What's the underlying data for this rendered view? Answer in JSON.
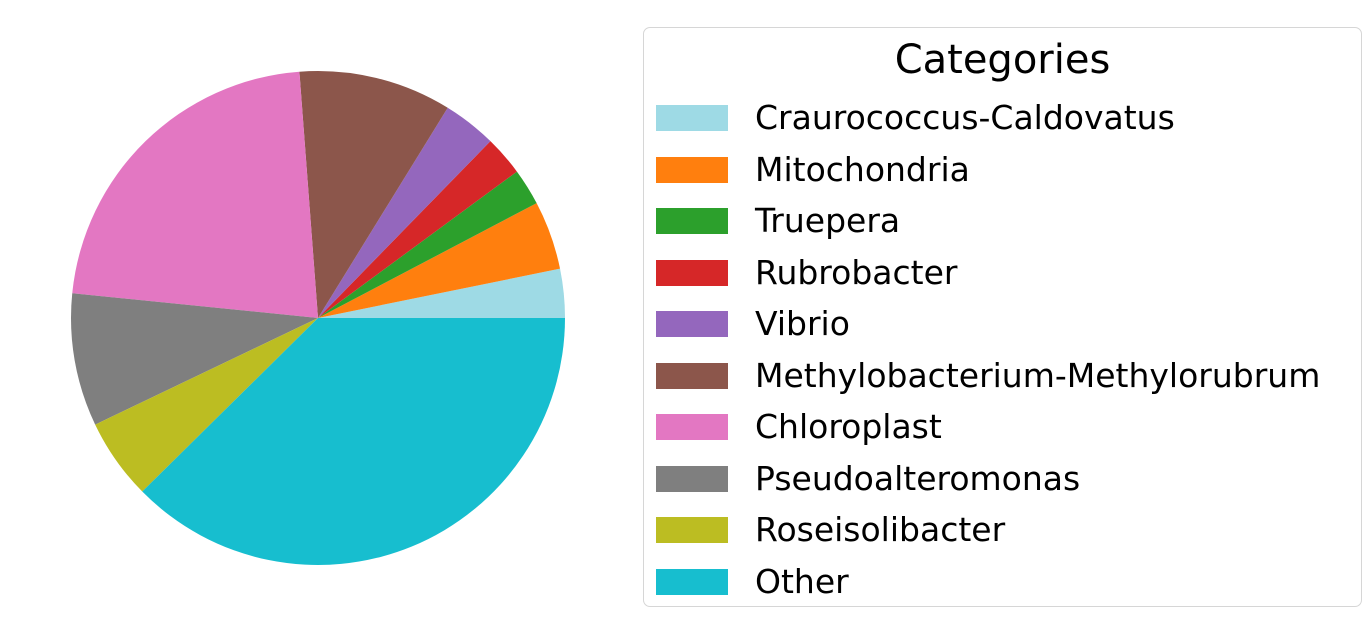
{
  "chart_data": {
    "type": "pie",
    "legend_title": "Categories",
    "legend_position": "right",
    "start_angle_deg": 0,
    "direction": "counterclockwise",
    "slices": [
      {
        "label": "Craurococcus-Caldovatus",
        "value": 3.2,
        "color": "#9edae5"
      },
      {
        "label": "Mitochondria",
        "value": 4.5,
        "color": "#ff7f0e"
      },
      {
        "label": "Truepera",
        "value": 2.4,
        "color": "#2ca02c"
      },
      {
        "label": "Rubrobacter",
        "value": 2.6,
        "color": "#d62728"
      },
      {
        "label": "Vibrio",
        "value": 3.5,
        "color": "#9467bd"
      },
      {
        "label": "Methylobacterium-Methylorubrum",
        "value": 10.0,
        "color": "#8c564b"
      },
      {
        "label": "Chloroplast",
        "value": 22.2,
        "color": "#e377c2"
      },
      {
        "label": "Pseudoalteromonas",
        "value": 8.7,
        "color": "#7f7f7f"
      },
      {
        "label": "Roseisolibacter",
        "value": 5.3,
        "color": "#bcbd22"
      },
      {
        "label": "Other",
        "value": 37.6,
        "color": "#17becf"
      }
    ]
  }
}
